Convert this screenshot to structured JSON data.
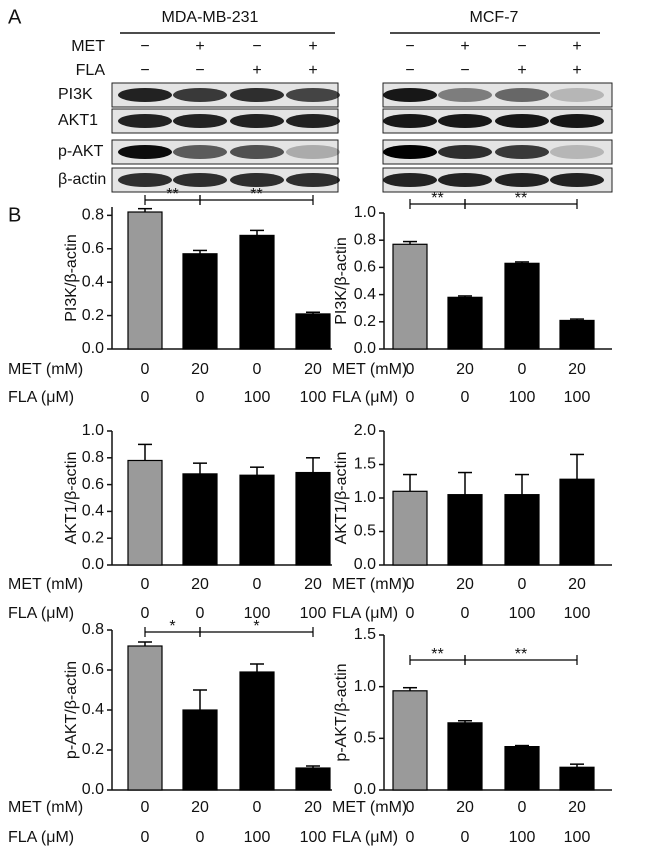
{
  "panel_a": {
    "label": "A",
    "cell_lines": [
      "MDA-MB-231",
      "MCF-7"
    ],
    "treatments": [
      {
        "label": "MET",
        "signs": [
          "−",
          "+",
          "−",
          "+"
        ]
      },
      {
        "label": "FLA",
        "signs": [
          "−",
          "−",
          "+",
          "+"
        ]
      }
    ],
    "blots": [
      "PI3K",
      "AKT1",
      "p-AKT",
      "β-actin"
    ]
  },
  "panel_b": {
    "label": "B"
  },
  "chart_data": [
    {
      "type": "bar",
      "ylabel": "PI3K/β-actin",
      "values": [
        0.82,
        0.57,
        0.68,
        0.21
      ],
      "errors": [
        0.02,
        0.02,
        0.03,
        0.01
      ],
      "colors": [
        "#9a9a9a",
        "#000000",
        "#000000",
        "#000000"
      ],
      "ylim": [
        0,
        0.85
      ],
      "yticks": [
        {
          "value": 0,
          "label": "0.0"
        },
        0.2,
        0.4,
        0.6,
        0.8
      ],
      "annotations": [
        "**",
        "**"
      ],
      "conditions": [
        {
          "label": "MET (mM)",
          "values": [
            "0",
            "20",
            "0",
            "20"
          ]
        },
        {
          "label": "FLA (μM)",
          "values": [
            "0",
            "0",
            "100",
            "100"
          ]
        }
      ]
    },
    {
      "type": "bar",
      "ylabel": "PI3K/β-actin",
      "values": [
        0.77,
        0.38,
        0.63,
        0.21
      ],
      "errors": [
        0.02,
        0.01,
        0.01,
        0.01
      ],
      "colors": [
        "#9a9a9a",
        "#000000",
        "#000000",
        "#000000"
      ],
      "ylim": [
        0,
        1
      ],
      "yticks": [
        {
          "value": 0,
          "label": "0.0"
        },
        0.2,
        0.4,
        0.6,
        0.8,
        {
          "value": 1,
          "label": "1.0"
        }
      ],
      "annotations": [
        "**",
        "**"
      ],
      "conditions": [
        {
          "label": "MET (mM)",
          "values": [
            "0",
            "20",
            "0",
            "20"
          ]
        },
        {
          "label": "FLA (μM)",
          "values": [
            "0",
            "0",
            "100",
            "100"
          ]
        }
      ]
    },
    {
      "type": "bar",
      "ylabel": "AKT1/β-actin",
      "values": [
        0.78,
        0.68,
        0.67,
        0.69
      ],
      "errors": [
        0.12,
        0.08,
        0.06,
        0.11
      ],
      "colors": [
        "#9a9a9a",
        "#000000",
        "#000000",
        "#000000"
      ],
      "ylim": [
        0,
        1
      ],
      "yticks": [
        {
          "value": 0,
          "label": "0.0"
        },
        0.2,
        0.4,
        0.6,
        0.8,
        {
          "value": 1,
          "label": "1.0"
        }
      ],
      "annotations": [],
      "conditions": [
        {
          "label": "MET (mM)",
          "values": [
            "0",
            "20",
            "0",
            "20"
          ]
        },
        {
          "label": "FLA (μM)",
          "values": [
            "0",
            "0",
            "100",
            "100"
          ]
        }
      ]
    },
    {
      "type": "bar",
      "ylabel": "AKT1/β-actin",
      "values": [
        1.1,
        1.05,
        1.05,
        1.28
      ],
      "errors": [
        0.25,
        0.33,
        0.3,
        0.37
      ],
      "colors": [
        "#9a9a9a",
        "#000000",
        "#000000",
        "#000000"
      ],
      "ylim": [
        0,
        2
      ],
      "yticks": [
        {
          "value": 0,
          "label": "0.0"
        },
        0.5,
        {
          "value": 1,
          "label": "1.0"
        },
        1.5,
        {
          "value": 2,
          "label": "2.0"
        }
      ],
      "annotations": [],
      "conditions": [
        {
          "label": "MET (mM)",
          "values": [
            "0",
            "20",
            "0",
            "20"
          ]
        },
        {
          "label": "FLA (μM)",
          "values": [
            "0",
            "0",
            "100",
            "100"
          ]
        }
      ]
    },
    {
      "type": "bar",
      "ylabel": "p-AKT/β-actin",
      "values": [
        0.72,
        0.4,
        0.59,
        0.11
      ],
      "errors": [
        0.02,
        0.1,
        0.04,
        0.01
      ],
      "colors": [
        "#9a9a9a",
        "#000000",
        "#000000",
        "#000000"
      ],
      "ylim": [
        0,
        0.8
      ],
      "yticks": [
        {
          "value": 0,
          "label": "0.0"
        },
        0.2,
        0.4,
        0.6,
        0.8
      ],
      "annotations": [
        "*",
        "*"
      ],
      "conditions": [
        {
          "label": "MET (mM)",
          "values": [
            "0",
            "20",
            "0",
            "20"
          ]
        },
        {
          "label": "FLA (μM)",
          "values": [
            "0",
            "0",
            "100",
            "100"
          ]
        }
      ]
    },
    {
      "type": "bar",
      "ylabel": "p-AKT/β-actin",
      "values": [
        0.96,
        0.65,
        0.42,
        0.22
      ],
      "errors": [
        0.03,
        0.02,
        0.01,
        0.03
      ],
      "colors": [
        "#9a9a9a",
        "#000000",
        "#000000",
        "#000000"
      ],
      "ylim": [
        0,
        1.5
      ],
      "yticks": [
        {
          "value": 0,
          "label": "0.0"
        },
        0.5,
        {
          "value": 1,
          "label": "1.0"
        },
        1.5
      ],
      "annotations": [
        "**",
        "**"
      ],
      "conditions": [
        {
          "label": "MET (mM)",
          "values": [
            "0",
            "20",
            "0",
            "20"
          ]
        },
        {
          "label": "FLA (μM)",
          "values": [
            "0",
            "0",
            "100",
            "100"
          ]
        }
      ]
    }
  ]
}
